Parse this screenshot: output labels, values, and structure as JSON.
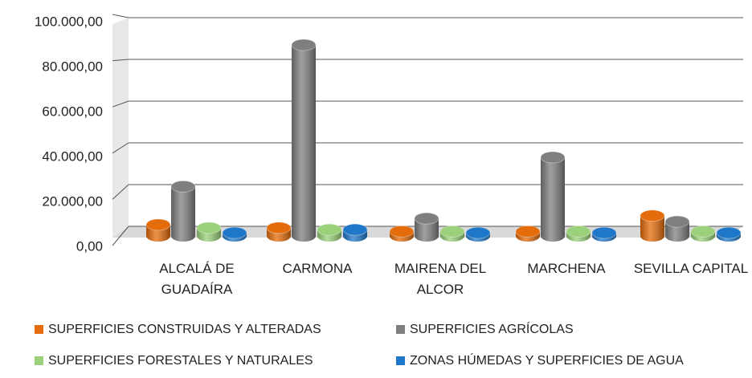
{
  "chart_data": {
    "type": "bar3d",
    "categories": [
      "ALCALÁ DE GUADAÍRA",
      "CARMONA",
      "MAIRENA DEL ALCOR",
      "MARCHENA",
      "SEVILLA CAPITAL"
    ],
    "series": [
      {
        "name": "SUPERFICIES CONSTRUIDAS Y ALTERADAS",
        "color": "#e46c0a",
        "values": [
          5000,
          3600,
          2000,
          2000,
          9000
        ]
      },
      {
        "name": "SUPERFICIES AGRÍCOLAS",
        "color": "#7f7f7f",
        "values": [
          22000,
          85000,
          7800,
          35000,
          6400
        ]
      },
      {
        "name": "SUPERFICIES FORESTALES Y NATURALES",
        "color": "#9bd17a",
        "values": [
          3600,
          2800,
          2000,
          2000,
          2000
        ]
      },
      {
        "name": "ZONAS HÚMEDAS Y SUPERFICIES DE AGUA",
        "color": "#1f77c9",
        "values": [
          1400,
          2800,
          1400,
          1400,
          1400
        ]
      }
    ],
    "ylim": [
      0,
      100000
    ],
    "yticks": [
      {
        "value": 0,
        "label": "0,00"
      },
      {
        "value": 20000,
        "label": "20.000,00"
      },
      {
        "value": 40000,
        "label": "40.000,00"
      },
      {
        "value": 60000,
        "label": "60.000,00"
      },
      {
        "value": 80000,
        "label": "80.000,00"
      },
      {
        "value": 100000,
        "label": "100.000,00"
      }
    ],
    "grid": true
  }
}
